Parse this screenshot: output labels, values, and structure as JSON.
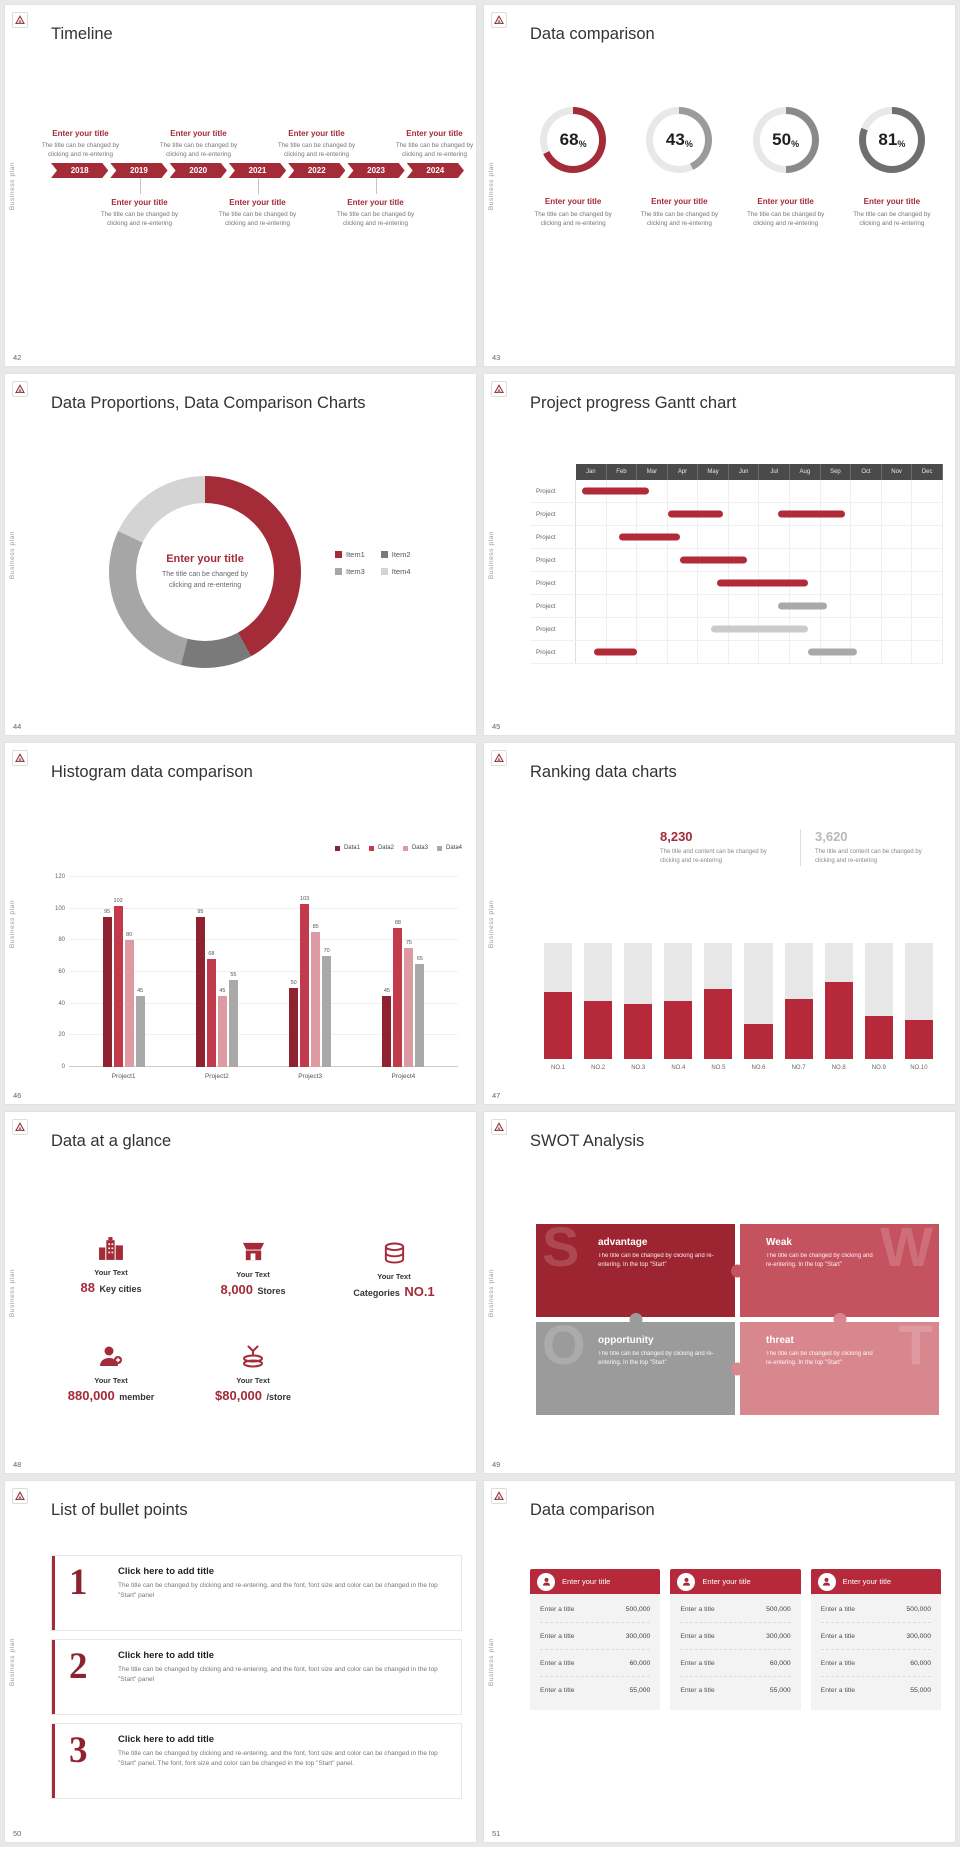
{
  "common": {
    "side_label": "Business plan",
    "accent_color": "#a42b38"
  },
  "slides": {
    "timeline": {
      "page_no": "42",
      "title": "Timeline",
      "years": [
        "2018",
        "2019",
        "2020",
        "2021",
        "2022",
        "2023",
        "2024"
      ],
      "top_entries": [
        {
          "title": "Enter your title",
          "desc": "The title can be changed by clicking and re-entering"
        },
        {
          "title": "Enter your title",
          "desc": "The title can be changed by clicking and re-entering"
        },
        {
          "title": "Enter your title",
          "desc": "The title can be changed by clicking and re-entering"
        },
        {
          "title": "Enter your title",
          "desc": "The title can be changed by clicking and re-entering"
        }
      ],
      "bottom_entries": [
        {
          "title": "Enter your title",
          "desc": "The title can be changed by clicking and re-entering"
        },
        {
          "title": "Enter your title",
          "desc": "The title can be changed by clicking and re-entering"
        },
        {
          "title": "Enter your title",
          "desc": "The title can be changed by clicking and re-entering"
        }
      ]
    },
    "rings": {
      "page_no": "43",
      "title": "Data comparison",
      "chart_data": {
        "type": "donut-progress",
        "track_color": "#e8e8e8",
        "items": [
          {
            "percent": 68,
            "color": "#a42b38",
            "title": "Enter your title",
            "desc": "The title can be changed by clicking and re-entering"
          },
          {
            "percent": 43,
            "color": "#9b9b9b",
            "title": "Enter your title",
            "desc": "The title can be changed by clicking and re-entering"
          },
          {
            "percent": 50,
            "color": "#8a8a8a",
            "title": "Enter your title",
            "desc": "The title can be changed by clicking and re-entering"
          },
          {
            "percent": 81,
            "color": "#6f6f6f",
            "title": "Enter your title",
            "desc": "The title can be changed by clicking and re-entering"
          }
        ]
      }
    },
    "donut": {
      "page_no": "44",
      "title": "Data Proportions, Data Comparison Charts",
      "center_title": "Enter your title",
      "center_desc": "The title can be changed by clicking and re-entering",
      "chart_data": {
        "type": "pie",
        "segments": [
          {
            "label": "Item1",
            "value": 42,
            "color": "#a42b38"
          },
          {
            "label": "Item2",
            "value": 12,
            "color": "#7a7a7a"
          },
          {
            "label": "Item3",
            "value": 28,
            "color": "#a6a6a6"
          },
          {
            "label": "Item4",
            "value": 18,
            "color": "#d4d4d4"
          }
        ]
      }
    },
    "gantt": {
      "page_no": "45",
      "title": "Project progress Gantt chart",
      "row_label": "Project",
      "months": [
        "Jan",
        "Feb",
        "Mar",
        "Apr",
        "May",
        "Jun",
        "Jul",
        "Aug",
        "Sep",
        "Oct",
        "Nov",
        "Dec"
      ],
      "chart_data": {
        "type": "gantt",
        "rows": [
          {
            "label": "Project",
            "bars": [
              {
                "start": 0.2,
                "len": 2.2,
                "color": "red"
              }
            ]
          },
          {
            "label": "Project",
            "bars": [
              {
                "start": 3.0,
                "len": 1.8,
                "color": "red"
              },
              {
                "start": 6.6,
                "len": 2.2,
                "color": "red"
              }
            ]
          },
          {
            "label": "Project",
            "bars": [
              {
                "start": 1.4,
                "len": 2.0,
                "color": "red"
              }
            ]
          },
          {
            "label": "Project",
            "bars": [
              {
                "start": 3.4,
                "len": 2.2,
                "color": "red"
              }
            ]
          },
          {
            "label": "Project",
            "bars": [
              {
                "start": 4.6,
                "len": 3.0,
                "color": "red"
              }
            ]
          },
          {
            "label": "Project",
            "bars": [
              {
                "start": 6.6,
                "len": 1.6,
                "color": "gray"
              }
            ]
          },
          {
            "label": "Project",
            "bars": [
              {
                "start": 4.4,
                "len": 3.2,
                "color": "lightgray"
              }
            ]
          },
          {
            "label": "Project",
            "bars": [
              {
                "start": 0.6,
                "len": 1.4,
                "color": "red"
              },
              {
                "start": 7.6,
                "len": 1.6,
                "color": "gray"
              }
            ]
          }
        ]
      }
    },
    "histogram": {
      "page_no": "46",
      "title": "Histogram data comparison",
      "chart_data": {
        "type": "bar",
        "categories": [
          "Project1",
          "Project2",
          "Project3",
          "Project4"
        ],
        "series": [
          {
            "name": "Data1",
            "color": "#8e2230",
            "values": [
              95,
              95,
              50,
              45
            ]
          },
          {
            "name": "Data2",
            "color": "#c23b4c",
            "values": [
              102,
              68,
              103,
              88
            ]
          },
          {
            "name": "Data3",
            "color": "#dd9aa2",
            "values": [
              80,
              45,
              85,
              75
            ]
          },
          {
            "name": "Data4",
            "color": "#a9a9a9",
            "values": [
              45,
              55,
              70,
              65
            ]
          }
        ],
        "y_ticks": [
          0,
          20,
          40,
          60,
          80,
          100,
          120
        ],
        "y_max": 120
      }
    },
    "ranking": {
      "page_no": "47",
      "title": "Ranking data charts",
      "stat_left": {
        "value": "8,230",
        "desc": "The title and content can be changed by clicking and re-entering"
      },
      "stat_right": {
        "value": "3,620",
        "desc": "The title and content can be changed by clicking and re-entering"
      },
      "chart_data": {
        "type": "bar",
        "categories": [
          "NO.1",
          "NO.2",
          "NO.3",
          "NO.4",
          "NO.5",
          "NO.6",
          "NO.7",
          "NO.8",
          "NO.9",
          "NO.10"
        ],
        "fill_percent": [
          58,
          50,
          47,
          50,
          60,
          30,
          52,
          66,
          37,
          34
        ],
        "bar_color": "#b5293b",
        "track_color": "#e7e7e7"
      }
    },
    "glance": {
      "page_no": "48",
      "title": "Data at a glance",
      "items": [
        {
          "icon": "city-buildings",
          "label": "Your Text",
          "value": "88",
          "unit": "Key cities"
        },
        {
          "icon": "store",
          "label": "Your Text",
          "value": "8,000",
          "unit": "Stores"
        },
        {
          "icon": "database",
          "label": "Your Text",
          "value": "NO.1",
          "unit": "Categories"
        },
        {
          "icon": "member-add",
          "label": "Your Text",
          "value": "880,000",
          "unit": "member"
        },
        {
          "icon": "coins",
          "label": "Your Text",
          "value": "$80,000",
          "unit": "/store"
        }
      ]
    },
    "swot": {
      "page_no": "49",
      "title": "SWOT Analysis",
      "pieces": [
        {
          "letter": "S",
          "heading": "advantage",
          "desc": "The title can be changed by clicking and re-entering. In the top \"Start\"",
          "color": "#9c2531"
        },
        {
          "letter": "W",
          "heading": "Weak",
          "desc": "The title can be changed by clicking and re-entering. In the top \"Start\"",
          "color": "#c5535f"
        },
        {
          "letter": "O",
          "heading": "opportunity",
          "desc": "The title can be changed by clicking and re-entering. In the top \"Start\"",
          "color": "#9b9b9b"
        },
        {
          "letter": "T",
          "heading": "threat",
          "desc": "The title can be changed by clicking and re-entering. In the top \"Start\"",
          "color": "#d8878e"
        }
      ]
    },
    "bullets": {
      "page_no": "50",
      "title": "List of bullet points",
      "items": [
        {
          "number": "1",
          "heading": "Click here to add title",
          "desc": "The title can be changed by clicking and re-entering, and the font, font size and color can be changed in the top \"Start\" panel"
        },
        {
          "number": "2",
          "heading": "Click here to add title",
          "desc": "The title can be changed by clicking and re-entering, and the font, font size and color can be changed in the top \"Start\" panel"
        },
        {
          "number": "3",
          "heading": "Click here to add title",
          "desc": "The title can be changed by clicking and re-entering, and the font, font size and color can be changed in the top \"Start\" panel. The font, font size and color can be changed in the top \"Start\" panel."
        }
      ]
    },
    "cards": {
      "page_no": "51",
      "title": "Data comparison",
      "cards": [
        {
          "title": "Enter your title",
          "rows": [
            {
              "label": "Enter a title",
              "value": "500,000"
            },
            {
              "label": "Enter a title",
              "value": "300,000"
            },
            {
              "label": "Enter a title",
              "value": "60,000"
            },
            {
              "label": "Enter a title",
              "value": "55,000"
            }
          ]
        },
        {
          "title": "Enter your title",
          "rows": [
            {
              "label": "Enter a title",
              "value": "500,000"
            },
            {
              "label": "Enter a title",
              "value": "300,000"
            },
            {
              "label": "Enter a title",
              "value": "60,000"
            },
            {
              "label": "Enter a title",
              "value": "55,000"
            }
          ]
        },
        {
          "title": "Enter your title",
          "rows": [
            {
              "label": "Enter a title",
              "value": "500,000"
            },
            {
              "label": "Enter a title",
              "value": "300,000"
            },
            {
              "label": "Enter a title",
              "value": "60,000"
            },
            {
              "label": "Enter a title",
              "value": "55,000"
            }
          ]
        }
      ]
    }
  }
}
